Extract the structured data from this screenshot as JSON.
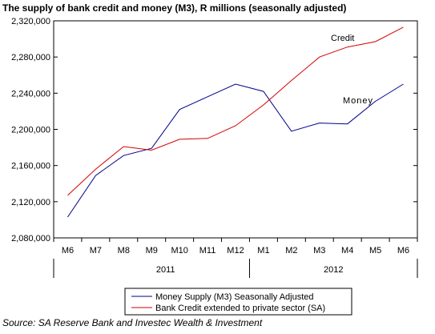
{
  "chart_data": {
    "type": "line",
    "title": "The supply of bank credit and money (M3), R millions (seasonally adjusted)",
    "source": "Source: SA Reserve Bank and Investec Wealth & Investment",
    "categories": [
      "M6",
      "M7",
      "M8",
      "M9",
      "M10",
      "M11",
      "M12",
      "M1",
      "M2",
      "M3",
      "M4",
      "M5",
      "M6"
    ],
    "year_labels": [
      {
        "text": "2011",
        "category_index": 3.5
      },
      {
        "text": "2012",
        "category_index": 9.5
      }
    ],
    "ylim": [
      2080000,
      2320000
    ],
    "yticks": [
      2080000,
      2120000,
      2160000,
      2200000,
      2240000,
      2280000,
      2320000
    ],
    "ytick_labels": [
      "2,080,000",
      "2,120,000",
      "2,160,000",
      "2,200,000",
      "2,240,000",
      "2,280,000",
      "2,320,000"
    ],
    "xlabel": "",
    "ylabel": "",
    "grid": false,
    "legend_position": "bottom-center",
    "series": [
      {
        "name": "Money Supply (M3) Seasonally Adjusted",
        "label": "Money",
        "color": "#00008b",
        "values": [
          2103000,
          2149000,
          2171000,
          2179000,
          2222000,
          2236000,
          2250000,
          2242000,
          2198000,
          2207000,
          2206000,
          2231000,
          2250000
        ]
      },
      {
        "name": "Bank Credit extended to private sector (SA)",
        "label": "Credit",
        "color": "#d40000",
        "values": [
          2127000,
          2156000,
          2181000,
          2177000,
          2189000,
          2190000,
          2204000,
          2227000,
          2254000,
          2280000,
          2291000,
          2297000,
          2313000
        ]
      }
    ]
  }
}
